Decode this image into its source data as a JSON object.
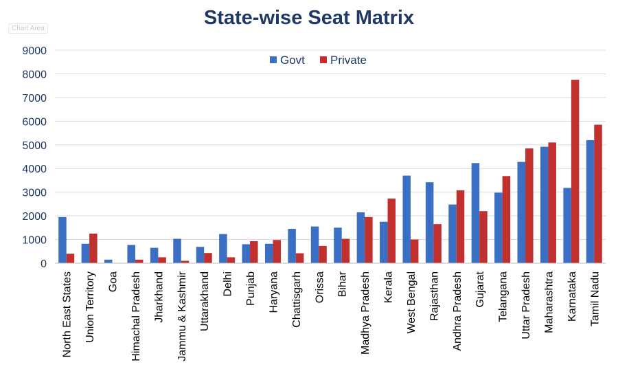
{
  "chart_data": {
    "type": "bar",
    "title": "State-wise Seat Matrix",
    "chart_area_label": "Chart Area",
    "xlabel": "",
    "ylabel": "",
    "ylim": [
      0,
      9000
    ],
    "yticks": [
      0,
      1000,
      2000,
      3000,
      4000,
      5000,
      6000,
      7000,
      8000,
      9000
    ],
    "grid": true,
    "legend_position": "top-center",
    "categories": [
      "North East States",
      "Union Territory",
      "Goa",
      "Himachal Pradesh",
      "Jharkhand",
      "Jammu & Kashmir",
      "Uttarakhand",
      "Delhi",
      "Punjab",
      "Haryana",
      "Chattisgarh",
      "Orissa",
      "Bihar",
      "Madhya Pradesh",
      "Kerala",
      "West Bengal",
      "Rajasthan",
      "Andhra Pradesh",
      "Gujarat",
      "Telangana",
      "Uttar Pradesh",
      "Maharashtra",
      "Karnataka",
      "Tamil Nadu"
    ],
    "series": [
      {
        "name": "Govt",
        "color": "#3a6fc4",
        "values": [
          1950,
          820,
          150,
          770,
          650,
          1030,
          690,
          1230,
          800,
          820,
          1450,
          1550,
          1500,
          2150,
          1750,
          3700,
          3420,
          2480,
          4230,
          2980,
          4280,
          4920,
          3180,
          5200
        ]
      },
      {
        "name": "Private",
        "color": "#c0302e",
        "values": [
          400,
          1250,
          0,
          150,
          250,
          100,
          430,
          250,
          930,
          980,
          420,
          730,
          1030,
          1950,
          2730,
          1000,
          1650,
          3080,
          2200,
          3680,
          4850,
          5100,
          7750,
          5850
        ]
      }
    ]
  }
}
